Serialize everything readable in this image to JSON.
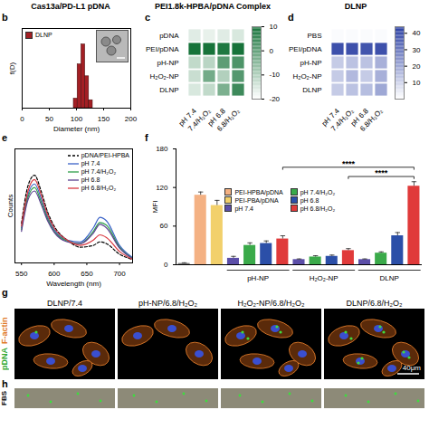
{
  "header": {
    "labels": [
      "Cas13a/PD-L1 pDNA",
      "PEI1.8k-HPBA/pDNA Complex",
      "DLNP"
    ]
  },
  "chart_data": [
    {
      "panel": "b",
      "type": "histogram",
      "name": "DLNP",
      "color": "#a31f24",
      "x_label": "Diameter (nm)",
      "y_label": "f(D)",
      "bins": [
        95,
        102,
        109,
        116,
        123,
        130
      ],
      "counts": [
        12,
        55,
        80,
        40,
        10
      ],
      "xlim": [
        0,
        200
      ],
      "xticks": [
        0,
        50,
        100,
        150,
        200
      ],
      "ylim": [
        0,
        100
      ],
      "tick_labels": "x",
      "legend": "top-left",
      "grid": false
    },
    {
      "panel": "c",
      "type": "heatmap",
      "x": [
        "pH 7.4",
        "7.4/H₂O₂",
        "pH 6.8",
        "6.8/H₂O₂"
      ],
      "y": [
        "pDNA",
        "PEI/pDNA",
        "pH-NP",
        "H₂O₂-NP",
        "DLNP"
      ],
      "cells": [
        [
          -16,
          -17,
          -16,
          -15
        ],
        [
          10,
          10,
          9,
          10
        ],
        [
          -12,
          -11,
          1,
          3
        ],
        [
          -13,
          -2,
          -10,
          2
        ],
        [
          -15,
          -12,
          -3,
          5
        ]
      ],
      "colorbar": {
        "range": [
          -20,
          10
        ],
        "ticks": [
          10,
          0,
          -10,
          -20
        ]
      },
      "colors": [
        "#ffffff",
        "#17733a"
      ]
    },
    {
      "panel": "d",
      "type": "heatmap",
      "x": [
        "pH 7.4",
        "7.4/H₂O₂",
        "pH 6.8",
        "6.8/H₂O₂"
      ],
      "y": [
        "PBS",
        "PEI/pDNA",
        "pH-NP",
        "H₂O₂-NP",
        "DLNP"
      ],
      "cells": [
        [
          1,
          1,
          1,
          1
        ],
        [
          40,
          40,
          39,
          40
        ],
        [
          12,
          14,
          14,
          18
        ],
        [
          12,
          16,
          12,
          18
        ],
        [
          12,
          14,
          15,
          20
        ]
      ],
      "colorbar": {
        "range": [
          0,
          44
        ],
        "ticks": [
          10,
          20,
          30,
          40
        ]
      },
      "colors": [
        "#ffffff",
        "#2a3fa3"
      ]
    },
    {
      "panel": "e",
      "type": "line",
      "x_label": "Wavelength (nm)",
      "y_label": "Counts",
      "x": [
        550,
        560,
        570,
        580,
        590,
        600,
        620,
        640,
        660,
        670,
        680,
        700,
        720
      ],
      "series": [
        {
          "name": "pDNA/PEI-HPBA",
          "color": "#000000",
          "line_style": "dashed",
          "values": [
            45,
            88,
            100,
            82,
            58,
            42,
            26,
            18,
            20,
            24,
            22,
            10,
            4
          ]
        },
        {
          "name": "pH 7.4",
          "color": "#3a62c7",
          "line_style": "solid",
          "values": [
            40,
            78,
            90,
            74,
            52,
            38,
            26,
            24,
            40,
            52,
            48,
            20,
            6
          ]
        },
        {
          "name": "pH 7.4/H₂O₂",
          "color": "#2e9e4a",
          "line_style": "solid",
          "values": [
            38,
            75,
            86,
            70,
            50,
            36,
            25,
            22,
            36,
            46,
            43,
            18,
            5
          ]
        },
        {
          "name": "pH 6.8",
          "color": "#5a3f8f",
          "line_style": "solid",
          "values": [
            36,
            72,
            82,
            67,
            48,
            35,
            24,
            22,
            34,
            44,
            40,
            17,
            5
          ]
        },
        {
          "name": "pH 6.8/H₂O₂",
          "color": "#d9363e",
          "line_style": "solid",
          "values": [
            42,
            82,
            95,
            78,
            55,
            40,
            26,
            20,
            26,
            32,
            29,
            13,
            4
          ]
        }
      ],
      "xlim": [
        540,
        720
      ],
      "xticks": [
        550,
        600,
        650,
        700
      ],
      "ylim": [
        0,
        130
      ],
      "tick_labels": "x",
      "legend": "top-right",
      "grid": false
    },
    {
      "panel": "f",
      "type": "bar",
      "y_label": "MFI",
      "categories": [
        null,
        null,
        null,
        null,
        null,
        null,
        null,
        null,
        null,
        null,
        null,
        null,
        null,
        null,
        null
      ],
      "values": [
        2,
        108,
        92,
        10,
        30,
        33,
        40,
        8,
        12,
        13,
        22,
        8,
        18,
        45,
        122
      ],
      "errors": [
        1,
        5,
        8,
        3,
        4,
        4,
        5,
        1,
        2,
        2,
        3,
        1,
        2,
        5,
        7
      ],
      "colors": [
        "#7f7f7f",
        "#f4b183",
        "#f2d06b",
        "#5b4ea8",
        "#3aaa4a",
        "#2b4fa8",
        "#e03a3a",
        "#5b4ea8",
        "#3aaa4a",
        "#2b4fa8",
        "#e03a3a",
        "#5b4ea8",
        "#3aaa4a",
        "#2b4fa8",
        "#e03a3a"
      ],
      "groups": [
        null,
        null,
        null,
        "pH-NP",
        "pH-NP",
        "pH-NP",
        "pH-NP",
        "H₂O₂-NP",
        "H₂O₂-NP",
        "H₂O₂-NP",
        "H₂O₂-NP",
        "DLNP",
        "DLNP",
        "DLNP",
        "DLNP"
      ],
      "legend_items": [
        {
          "name": "PEI-HPBA/pDNA",
          "color": "#f4b183"
        },
        {
          "name": "PEI-PBA/pDNA",
          "color": "#f2d06b"
        },
        {
          "name": "pH 7.4",
          "color": "#5b4ea8"
        },
        {
          "name": "pH 7.4/H₂O₂",
          "color": "#3aaa4a"
        },
        {
          "name": "pH 6.8",
          "color": "#2b4fa8"
        },
        {
          "name": "pH 6.8/H₂O₂",
          "color": "#e03a3a"
        }
      ],
      "annotations": [
        {
          "text": "****",
          "from": 6,
          "to": 14
        },
        {
          "text": "****",
          "from": 10,
          "to": 14
        }
      ],
      "ylim": [
        0,
        180
      ],
      "yticks": [
        0,
        60,
        120,
        180
      ],
      "legend": "top",
      "grid": false
    }
  ],
  "images": [
    {
      "panel": "g",
      "captions": [
        "DLNP/7.4",
        "pH-NP/6.8/H₂O₂",
        "H₂O₂-NP/6.8/H₂O₂",
        "DLNP/6.8/H₂O₂"
      ],
      "channel_labels": [
        {
          "text": "pDNA",
          "color": "#2fa82f"
        },
        {
          "text": "F-actin",
          "color": "#e07b2a"
        }
      ],
      "scale_bar": "40μm"
    },
    {
      "panel": "h",
      "row_label": "FBS"
    }
  ]
}
